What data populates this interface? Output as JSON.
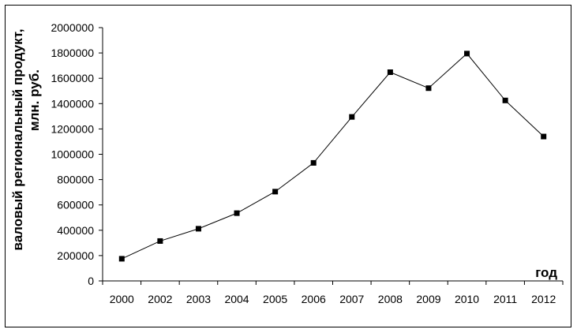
{
  "chart_data": {
    "type": "line",
    "categories": [
      "2000",
      "2002",
      "2003",
      "2004",
      "2005",
      "2006",
      "2007",
      "2008",
      "2009",
      "2010",
      "2011",
      "2012"
    ],
    "series": [
      {
        "values": [
          175000,
          315000,
          412000,
          535000,
          705000,
          932000,
          1295000,
          1648000,
          1522000,
          1795000,
          1425000,
          1140000
        ]
      }
    ],
    "xlabel": "год",
    "ylabel_line1": "валовый региональный продукт,",
    "ylabel_line2": "млн. руб.",
    "ylim": [
      0,
      2000000
    ],
    "yticks": [
      "0",
      "200000",
      "400000",
      "600000",
      "800000",
      "1000000",
      "1200000",
      "1400000",
      "1600000",
      "1800000",
      "2000000"
    ],
    "grid": false,
    "legend": "none",
    "line_color": "#000000",
    "marker": "square"
  }
}
